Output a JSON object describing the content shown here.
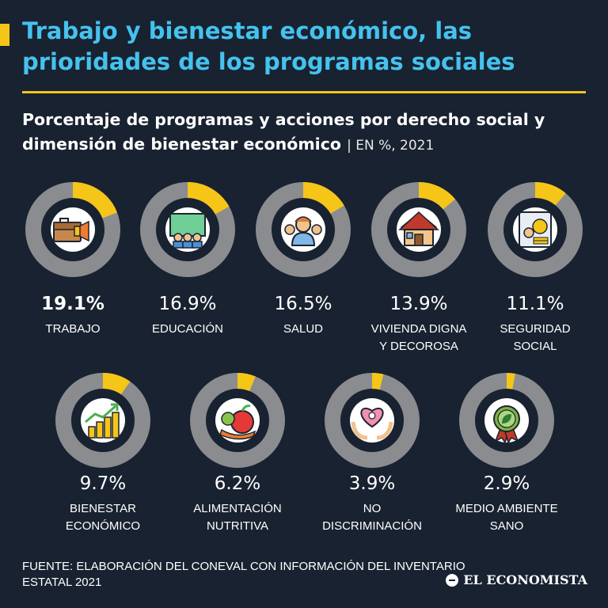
{
  "header": {
    "title": "Trabajo y bienestar económico, las prioridades de los programas sociales",
    "subtitle": "Porcentaje de programas y acciones por derecho social y dimensión de bienestar económico",
    "unit_note": "| EN %, 2021"
  },
  "footer": {
    "source": "FUENTE: ELABORACIÓN DEL CONEVAL CON INFORMACIÓN DEL INVENTARIO ESTATAL 2021",
    "brand": "EL ECONOMISTA"
  },
  "colors": {
    "background": "#182230",
    "accent": "#f5c518",
    "title": "#45c2ee",
    "track": "#8a8c8f"
  },
  "chart_data": {
    "type": "pie",
    "title": "Porcentaje de programas y acciones por derecho social y dimensión de bienestar económico",
    "unit": "EN %, 2021",
    "categories": [
      {
        "name": "TRABAJO",
        "label_lines": [
          "TRABAJO"
        ],
        "value": 19.1,
        "value_label": "19.1%",
        "icon": "briefcase-icon"
      },
      {
        "name": "EDUCACIÓN",
        "label_lines": [
          "EDUCACIÓN"
        ],
        "value": 16.9,
        "value_label": "16.9%",
        "icon": "classroom-icon"
      },
      {
        "name": "SALUD",
        "label_lines": [
          "SALUD"
        ],
        "value": 16.5,
        "value_label": "16.5%",
        "icon": "medical-staff-icon"
      },
      {
        "name": "VIVIENDA DIGNA Y DECOROSA",
        "label_lines": [
          "VIVIENDA DIGNA",
          "Y DECOROSA"
        ],
        "value": 13.9,
        "value_label": "13.9%",
        "icon": "house-icon"
      },
      {
        "name": "SEGURIDAD SOCIAL",
        "label_lines": [
          "SEGURIDAD",
          "SOCIAL"
        ],
        "value": 11.1,
        "value_label": "11.1%",
        "icon": "social-security-icon"
      },
      {
        "name": "BIENESTAR ECONÓMICO",
        "label_lines": [
          "BIENESTAR",
          "ECONÓMICO"
        ],
        "value": 9.7,
        "value_label": "9.7%",
        "icon": "growth-coins-icon"
      },
      {
        "name": "ALIMENTACIÓN NUTRITIVA",
        "label_lines": [
          "ALIMENTACIÓN",
          "NUTRITIVA"
        ],
        "value": 6.2,
        "value_label": "6.2%",
        "icon": "fruits-icon"
      },
      {
        "name": "NO DISCRIMINACIÓN",
        "label_lines": [
          "NO",
          "DISCRIMINACIÓN"
        ],
        "value": 3.9,
        "value_label": "3.9%",
        "icon": "heart-hands-icon"
      },
      {
        "name": "MEDIO AMBIENTE SANO",
        "label_lines": [
          "MEDIO AMBIENTE",
          "SANO"
        ],
        "value": 2.9,
        "value_label": "2.9%",
        "icon": "leaf-badge-icon"
      }
    ]
  }
}
